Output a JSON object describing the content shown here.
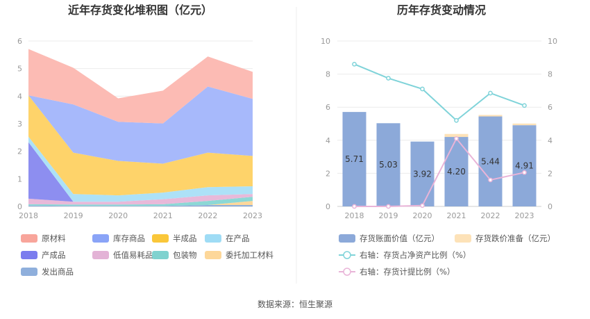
{
  "source_text": "数据来源：恒生聚源",
  "chart_data": [
    {
      "type": "area",
      "stacked": true,
      "title": "近年存货变化堆积图（亿元）",
      "x": [
        "2018",
        "2019",
        "2020",
        "2021",
        "2022",
        "2023"
      ],
      "ylim": [
        0,
        6
      ],
      "yticks": [
        "0",
        "1",
        "2",
        "3",
        "4",
        "5",
        "6"
      ],
      "grid": true,
      "legend_position": "bottom",
      "series": [
        {
          "name": "发出商品",
          "color": "#8fafdc",
          "values": [
            0.03,
            0.02,
            0.02,
            0.02,
            0.05,
            0.05
          ]
        },
        {
          "name": "委托加工材料",
          "color": "#fdd89b",
          "values": [
            0.0,
            0.0,
            0.0,
            0.0,
            0.0,
            0.15
          ]
        },
        {
          "name": "包装物",
          "color": "#8cd8d5",
          "values": [
            0.05,
            0.05,
            0.05,
            0.06,
            0.15,
            0.15
          ]
        },
        {
          "name": "低值易耗品",
          "color": "#e8b9d9",
          "values": [
            0.2,
            0.1,
            0.1,
            0.18,
            0.2,
            0.1
          ]
        },
        {
          "name": "产成品",
          "color": "#8d8ef0",
          "values": [
            2.05,
            0.0,
            0.0,
            0.0,
            0.0,
            0.0
          ]
        },
        {
          "name": "在产品",
          "color": "#ade1f7",
          "values": [
            0.2,
            0.28,
            0.23,
            0.24,
            0.3,
            0.28
          ]
        },
        {
          "name": "半成品",
          "color": "#fed36a",
          "values": [
            1.5,
            1.5,
            1.25,
            1.05,
            1.25,
            1.1
          ]
        },
        {
          "name": "库存商品",
          "color": "#a7b9fb",
          "values": [
            0.0,
            1.75,
            1.42,
            1.46,
            2.4,
            2.07
          ]
        },
        {
          "name": "原材料",
          "color": "#fcbbb4",
          "values": [
            1.68,
            1.33,
            0.85,
            1.19,
            1.09,
            0.98
          ]
        }
      ],
      "legend": [
        {
          "name": "原材料",
          "color": "#f8a59b"
        },
        {
          "name": "库存商品",
          "color": "#8aa4f7"
        },
        {
          "name": "半成品",
          "color": "#fac73a"
        },
        {
          "name": "在产品",
          "color": "#9fdcf5"
        },
        {
          "name": "产成品",
          "color": "#7b7cee"
        },
        {
          "name": "低值易耗品",
          "color": "#e3b3d6"
        },
        {
          "name": "包装物",
          "color": "#7fd2cf"
        },
        {
          "name": "委托加工材料",
          "color": "#fdd799"
        },
        {
          "name": "发出商品",
          "color": "#8fafdc"
        }
      ]
    },
    {
      "type": "bar",
      "stacked": true,
      "title": "历年存货变动情况",
      "x": [
        "2018",
        "2019",
        "2020",
        "2021",
        "2022",
        "2023"
      ],
      "ylim": [
        0,
        10
      ],
      "yticks": [
        "0",
        "2",
        "4",
        "6",
        "8",
        "10"
      ],
      "y2lim": [
        0,
        10
      ],
      "y2ticks": [
        "0",
        "2",
        "4",
        "6",
        "8",
        "10"
      ],
      "grid": true,
      "legend_position": "bottom",
      "series": [
        {
          "name": "存货账面价值（亿元）",
          "color": "#8ca9d9",
          "values": [
            5.71,
            5.03,
            3.92,
            4.2,
            5.44,
            4.91
          ],
          "labels": [
            "5.71",
            "5.03",
            "3.92",
            "4.20",
            "5.44",
            "4.91"
          ]
        },
        {
          "name": "存货跌价准备（亿元）",
          "color": "#fde2b8",
          "values": [
            0.0,
            0.0,
            0.0,
            0.18,
            0.09,
            0.1
          ]
        }
      ],
      "line_series": [
        {
          "name": "右轴：存货占净资产比例（%）",
          "color": "#7fd3d9",
          "values": [
            8.6,
            7.75,
            7.1,
            5.2,
            6.85,
            6.1
          ]
        },
        {
          "name": "右轴：存货计提比例（%）",
          "color": "#e9b4d8",
          "values": [
            0.0,
            0.0,
            0.05,
            4.1,
            1.6,
            2.05
          ]
        }
      ]
    }
  ]
}
